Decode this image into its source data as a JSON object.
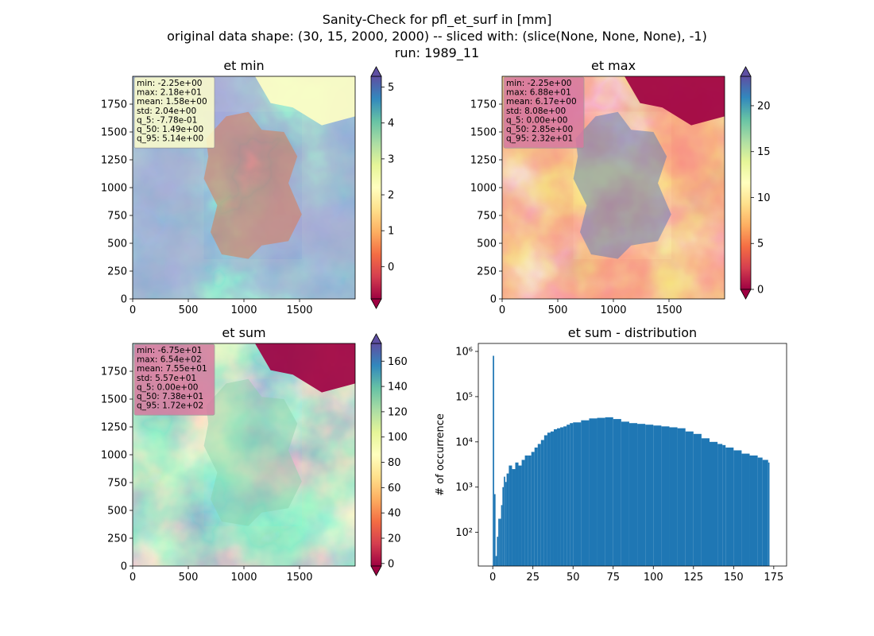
{
  "figure": {
    "title_lines": [
      "Sanity-Check for pfl_et_surf in [mm]",
      "original data shape: (30, 15, 2000, 2000) -- sliced with: (slice(None, None, None), -1)",
      "run: 1989_11"
    ]
  },
  "chart_data": [
    {
      "id": "et-min",
      "type": "heatmap",
      "title": "et min",
      "colormap": "Spectral",
      "xlim": [
        0,
        2000
      ],
      "ylim": [
        0,
        2000
      ],
      "x_ticks": [
        "0",
        "500",
        "1000",
        "1500"
      ],
      "y_ticks": [
        "0",
        "250",
        "500",
        "750",
        "1000",
        "1250",
        "1500",
        "1750"
      ],
      "colorbar": {
        "range": [
          -0.9,
          5.3
        ],
        "ticks": [
          "0",
          "1",
          "2",
          "3",
          "4",
          "5"
        ],
        "extend": "both"
      },
      "stats": [
        "min: -2.25e+00",
        "max: 2.18e+01",
        "mean: 1.58e+00",
        "std: 2.04e+00",
        "q_5: -7.78e-01",
        "q_50: 1.49e+00",
        "q_95: 5.14e+00"
      ],
      "stats_box_color": "#ffffcc"
    },
    {
      "id": "et-max",
      "type": "heatmap",
      "title": "et max",
      "colormap": "Spectral",
      "xlim": [
        0,
        2000
      ],
      "ylim": [
        0,
        2000
      ],
      "x_ticks": [
        "0",
        "500",
        "1000",
        "1500"
      ],
      "y_ticks": [
        "0",
        "250",
        "500",
        "750",
        "1000",
        "1250",
        "1500",
        "1750"
      ],
      "colorbar": {
        "range": [
          0,
          23.2
        ],
        "ticks": [
          "0",
          "5",
          "10",
          "15",
          "20"
        ],
        "extend": "both"
      },
      "stats": [
        "min: -2.25e+00",
        "max: 6.88e+01",
        "mean: 6.17e+00",
        "std: 8.08e+00",
        "q_5: 0.00e+00",
        "q_50: 2.85e+00",
        "q_95: 2.32e+01"
      ],
      "stats_box_color": "#d67aa0"
    },
    {
      "id": "et-sum",
      "type": "heatmap",
      "title": "et sum",
      "colormap": "Spectral",
      "xlim": [
        0,
        2000
      ],
      "ylim": [
        0,
        2000
      ],
      "x_ticks": [
        "0",
        "500",
        "1000",
        "1500"
      ],
      "y_ticks": [
        "0",
        "250",
        "500",
        "750",
        "1000",
        "1250",
        "1500",
        "1750"
      ],
      "colorbar": {
        "range": [
          -2,
          174
        ],
        "ticks": [
          "0",
          "20",
          "40",
          "60",
          "80",
          "100",
          "120",
          "140",
          "160"
        ],
        "extend": "both"
      },
      "stats": [
        "min: -6.75e+01",
        "max: 6.54e+02",
        "mean: 7.55e+01",
        "std: 5.57e+01",
        "q_5: 0.00e+00",
        "q_50: 7.38e+01",
        "q_95: 1.72e+02"
      ],
      "stats_box_color": "#d67aa0"
    },
    {
      "id": "et-sum-distribution",
      "type": "bar",
      "title": "et sum - distribution",
      "ylabel": "# of occurrence",
      "yscale": "log",
      "xlim": [
        -9,
        183
      ],
      "ylim": [
        18,
        1500000
      ],
      "x_ticks": [
        "0",
        "25",
        "50",
        "75",
        "100",
        "125",
        "150",
        "175"
      ],
      "y_ticks": [
        "10²",
        "10³",
        "10⁴",
        "10⁵",
        "10⁶"
      ],
      "bar_color": "#1f77b4",
      "bins_x": [
        0,
        0.86,
        1.72,
        2.58,
        3.44,
        4.3,
        5.16,
        6.02,
        6.88,
        7.74,
        8.6,
        10,
        12,
        14,
        16,
        18,
        20,
        22,
        24,
        26,
        28,
        30,
        32,
        34,
        36,
        38,
        40,
        42,
        44,
        46,
        48,
        50,
        55,
        60,
        65,
        70,
        75,
        80,
        85,
        90,
        95,
        100,
        105,
        110,
        115,
        120,
        125,
        130,
        135,
        140,
        143,
        145,
        150,
        155,
        160,
        165,
        168,
        171.5
      ],
      "bins_y": [
        800000,
        700,
        30,
        80,
        200,
        200,
        400,
        1000,
        1700,
        1300,
        2000,
        3000,
        2500,
        3500,
        3000,
        4000,
        5000,
        5000,
        6000,
        7500,
        9000,
        11000,
        14000,
        16000,
        17000,
        19000,
        20000,
        21000,
        22000,
        24000,
        26000,
        27000,
        30000,
        33000,
        34000,
        35000,
        32000,
        28000,
        26000,
        25000,
        24000,
        23000,
        22000,
        21000,
        20000,
        17000,
        15000,
        12000,
        10000,
        9000,
        8500,
        7500,
        6500,
        5500,
        5000,
        4500,
        4000,
        3500
      ],
      "bin_width": 0.86
    }
  ]
}
